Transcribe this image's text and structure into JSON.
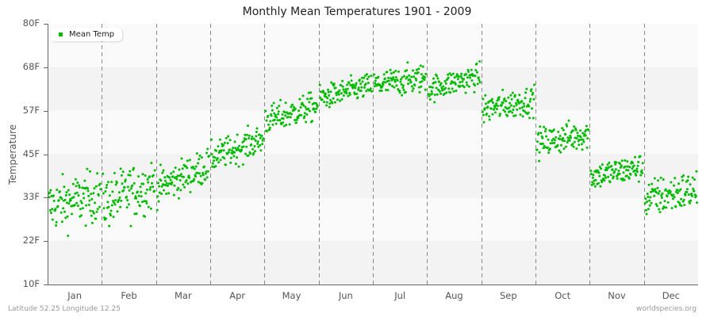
{
  "chart_data": {
    "type": "scatter",
    "title": "Monthly Mean Temperatures 1901 - 2009",
    "xlabel": "",
    "ylabel": "Temperature",
    "ylim": [
      10,
      80
    ],
    "yticks": [
      "10F",
      "22F",
      "33F",
      "45F",
      "57F",
      "68F",
      "80F"
    ],
    "ytick_values": [
      10,
      21.7,
      33.3,
      45,
      56.7,
      68.3,
      80
    ],
    "categories": [
      "Jan",
      "Feb",
      "Mar",
      "Apr",
      "May",
      "Jun",
      "Jul",
      "Aug",
      "Sep",
      "Oct",
      "Nov",
      "Dec"
    ],
    "legend": [
      {
        "name": "Mean Temp",
        "color": "#00bb00"
      }
    ],
    "legend_position": "top-left",
    "grid": {
      "horizontal_bands": true,
      "vertical_dashed_month_separators": true
    },
    "points_per_month": 109,
    "series": [
      {
        "name": "Mean Temp",
        "monthly_stats": [
          {
            "month": "Jan",
            "mean": 32.0,
            "min": 16.0,
            "max": 41.0,
            "trend_start": 31.0,
            "trend_end": 34.0
          },
          {
            "month": "Feb",
            "mean": 33.0,
            "min": 18.5,
            "max": 44.5,
            "trend_start": 32.0,
            "trend_end": 37.0
          },
          {
            "month": "Mar",
            "mean": 38.5,
            "min": 30.0,
            "max": 47.0,
            "trend_start": 36.0,
            "trend_end": 42.0
          },
          {
            "month": "Apr",
            "mean": 46.5,
            "min": 39.0,
            "max": 53.5,
            "trend_start": 44.0,
            "trend_end": 49.0
          },
          {
            "month": "May",
            "mean": 55.5,
            "min": 48.0,
            "max": 62.0,
            "trend_start": 54.0,
            "trend_end": 58.0
          },
          {
            "month": "Jun",
            "mean": 61.5,
            "min": 56.0,
            "max": 68.0,
            "trend_start": 60.0,
            "trend_end": 63.5
          },
          {
            "month": "Jul",
            "mean": 64.5,
            "min": 59.0,
            "max": 73.0,
            "trend_start": 63.5,
            "trend_end": 65.5
          },
          {
            "month": "Aug",
            "mean": 64.0,
            "min": 58.0,
            "max": 70.5,
            "trend_start": 62.5,
            "trend_end": 66.0
          },
          {
            "month": "Sep",
            "mean": 58.0,
            "min": 51.0,
            "max": 65.0,
            "trend_start": 57.0,
            "trend_end": 59.5
          },
          {
            "month": "Oct",
            "mean": 49.0,
            "min": 41.5,
            "max": 56.0,
            "trend_start": 48.0,
            "trend_end": 50.5
          },
          {
            "month": "Nov",
            "mean": 40.0,
            "min": 33.5,
            "max": 47.0,
            "trend_start": 39.0,
            "trend_end": 41.5
          },
          {
            "month": "Dec",
            "mean": 34.0,
            "min": 23.0,
            "max": 42.0,
            "trend_start": 33.0,
            "trend_end": 35.5
          }
        ]
      }
    ]
  },
  "footer": {
    "location": "Latitude 52.25 Longitude 12.25",
    "source": "worldspecies.org"
  },
  "colors": {
    "point": "#00bb00",
    "band_light": "#fafafa",
    "band_dark": "#f3f3f3",
    "axis": "#666666",
    "separator": "#888888"
  }
}
